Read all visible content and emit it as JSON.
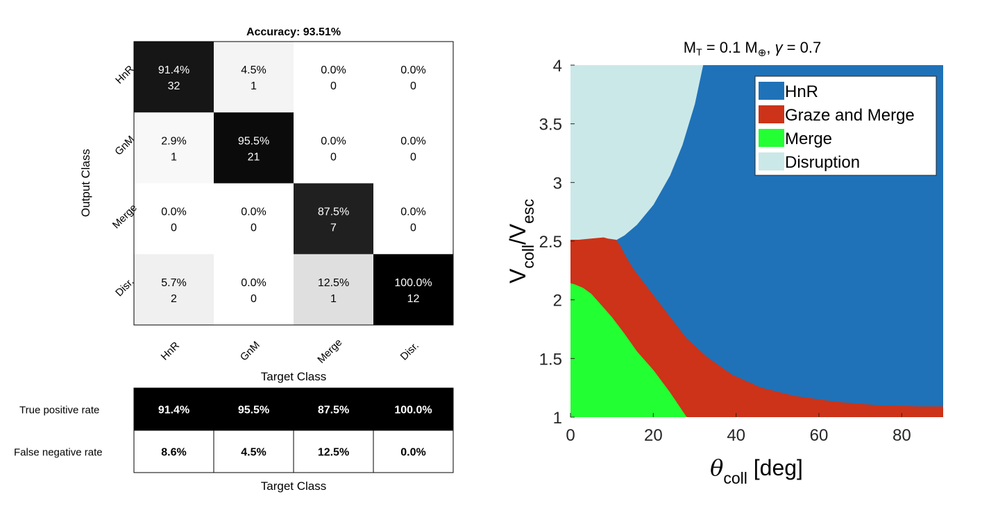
{
  "chart_data": [
    {
      "type": "heatmap",
      "title": "Accuracy: 93.51%",
      "xlabel": "Target Class",
      "ylabel": "Output Class",
      "classes": [
        "HnR",
        "GnM",
        "Merge",
        "Disr."
      ],
      "cells": [
        [
          {
            "pct": "91.4%",
            "count": "32",
            "value": 0.914
          },
          {
            "pct": "4.5%",
            "count": "1",
            "value": 0.045
          },
          {
            "pct": "0.0%",
            "count": "0",
            "value": 0.0
          },
          {
            "pct": "0.0%",
            "count": "0",
            "value": 0.0
          }
        ],
        [
          {
            "pct": "2.9%",
            "count": "1",
            "value": 0.029
          },
          {
            "pct": "95.5%",
            "count": "21",
            "value": 0.955
          },
          {
            "pct": "0.0%",
            "count": "0",
            "value": 0.0
          },
          {
            "pct": "0.0%",
            "count": "0",
            "value": 0.0
          }
        ],
        [
          {
            "pct": "0.0%",
            "count": "0",
            "value": 0.0
          },
          {
            "pct": "0.0%",
            "count": "0",
            "value": 0.0
          },
          {
            "pct": "87.5%",
            "count": "7",
            "value": 0.875
          },
          {
            "pct": "0.0%",
            "count": "0",
            "value": 0.0
          }
        ],
        [
          {
            "pct": "5.7%",
            "count": "2",
            "value": 0.057
          },
          {
            "pct": "0.0%",
            "count": "0",
            "value": 0.0
          },
          {
            "pct": "12.5%",
            "count": "1",
            "value": 0.125
          },
          {
            "pct": "100.0%",
            "count": "12",
            "value": 1.0
          }
        ]
      ],
      "summary": {
        "xlabel": "Target Class",
        "rows": [
          {
            "label": "True positive rate",
            "values": [
              "91.4%",
              "95.5%",
              "87.5%",
              "100.0%"
            ]
          },
          {
            "label": "False negative rate",
            "values": [
              "8.6%",
              "4.5%",
              "12.5%",
              "0.0%"
            ]
          }
        ]
      }
    },
    {
      "type": "area",
      "title_parts": {
        "m": "M",
        "sub": "T",
        "eq": " = 0.1 M",
        "earth": "⊕",
        "rest": ", ",
        "gamma": "γ",
        "end": " = 0.7"
      },
      "xlabel_parts": {
        "main": "θ",
        "sub": "coll",
        "rest": " [deg]"
      },
      "ylabel_parts": {
        "v1": "V",
        "sub1": "coll",
        "slash": "/V",
        "sub2": "esc"
      },
      "xlim": [
        0,
        90
      ],
      "ylim": [
        1,
        4
      ],
      "xticks": [
        0,
        20,
        40,
        60,
        80
      ],
      "yticks": [
        1,
        1.5,
        2,
        2.5,
        3,
        3.5,
        4
      ],
      "legend_position": "top-right",
      "regions": [
        {
          "name": "HnR",
          "color": "#1f72b8",
          "polygon": [
            [
              0,
              1
            ],
            [
              90,
              1
            ],
            [
              90,
              4
            ],
            [
              0,
              4
            ]
          ]
        },
        {
          "name": "Disruption",
          "color": "#cbe8e8",
          "polygon": [
            [
              0,
              2.51
            ],
            [
              2,
              2.51
            ],
            [
              5,
              2.52
            ],
            [
              8,
              2.53
            ],
            [
              9,
              2.52
            ],
            [
              11,
              2.51
            ],
            [
              13,
              2.55
            ],
            [
              16,
              2.64
            ],
            [
              20,
              2.81
            ],
            [
              24,
              3.06
            ],
            [
              27,
              3.32
            ],
            [
              30,
              3.67
            ],
            [
              32,
              4.0
            ],
            [
              0,
              4.0
            ]
          ]
        },
        {
          "name": "Graze and Merge",
          "color": "#cc3319",
          "polygon": [
            [
              0,
              1
            ],
            [
              90,
              1
            ],
            [
              90,
              1.09
            ],
            [
              84,
              1.09
            ],
            [
              74,
              1.1
            ],
            [
              64,
              1.13
            ],
            [
              54,
              1.18
            ],
            [
              46,
              1.25
            ],
            [
              39,
              1.36
            ],
            [
              33,
              1.51
            ],
            [
              28,
              1.67
            ],
            [
              23,
              1.9
            ],
            [
              18,
              2.13
            ],
            [
              15,
              2.27
            ],
            [
              13,
              2.39
            ],
            [
              12,
              2.46
            ],
            [
              11,
              2.51
            ],
            [
              9,
              2.52
            ],
            [
              8,
              2.53
            ],
            [
              5,
              2.52
            ],
            [
              2,
              2.51
            ],
            [
              0,
              2.51
            ]
          ]
        },
        {
          "name": "Merge",
          "color": "#22ff33",
          "polygon": [
            [
              0,
              1
            ],
            [
              28,
              1
            ],
            [
              24,
              1.21
            ],
            [
              20,
              1.4
            ],
            [
              16,
              1.56
            ],
            [
              13,
              1.71
            ],
            [
              10,
              1.85
            ],
            [
              7,
              1.97
            ],
            [
              5,
              2.05
            ],
            [
              3,
              2.1
            ],
            [
              1,
              2.13
            ],
            [
              0,
              2.14
            ]
          ]
        }
      ],
      "legend": [
        {
          "name": "HnR",
          "color": "#1f72b8"
        },
        {
          "name": "Graze and Merge",
          "color": "#cc3319"
        },
        {
          "name": "Merge",
          "color": "#22ff33"
        },
        {
          "name": "Disruption",
          "color": "#cbe8e8"
        }
      ]
    }
  ]
}
